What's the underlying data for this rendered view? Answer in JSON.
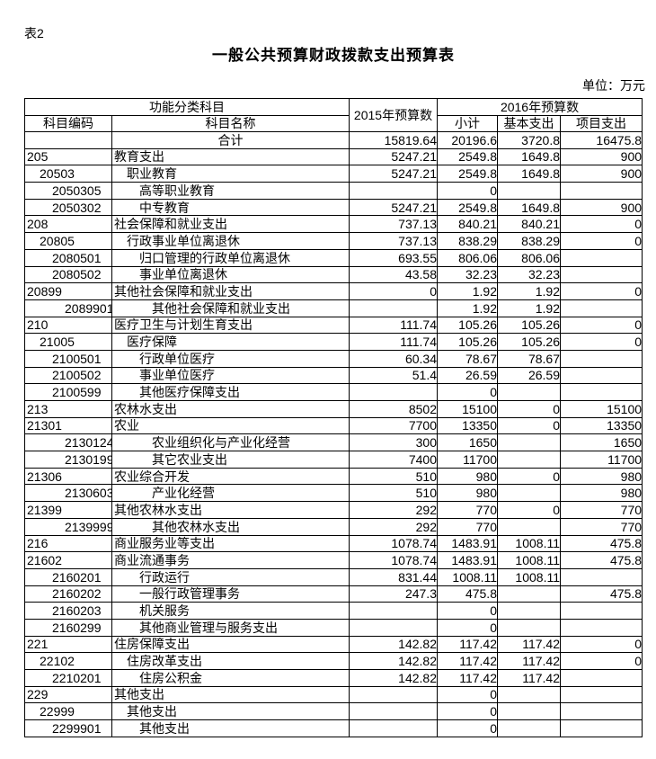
{
  "page": {
    "table_label": "表2",
    "title": "一般公共预算财政拨款支出预算表",
    "unit_note": "单位：万元"
  },
  "colors": {
    "text": "#000000",
    "background": "#ffffff",
    "border": "#000000"
  },
  "table": {
    "header": {
      "group_function": "功能分类科目",
      "col_code": "科目编码",
      "col_name": "科目名称",
      "col_2015": "2015年预算数",
      "group_2016": "2016年预算数",
      "col_subtotal": "小计",
      "col_basic": "基本支出",
      "col_project": "项目支出"
    },
    "rows": [
      {
        "code": "",
        "name": "合计",
        "name_align": "center",
        "indent": 0,
        "y2015": "15819.64",
        "subtotal": "20196.6",
        "basic": "3720.8",
        "project": "16475.8"
      },
      {
        "code": "205",
        "name": "教育支出",
        "indent": 0,
        "y2015": "5247.21",
        "subtotal": "2549.8",
        "basic": "1649.8",
        "project": "900"
      },
      {
        "code": "20503",
        "name": "职业教育",
        "indent": 2,
        "y2015": "5247.21",
        "subtotal": "2549.8",
        "basic": "1649.8",
        "project": "900"
      },
      {
        "code": "2050305",
        "name": "高等职业教育",
        "indent": 4,
        "y2015": "",
        "subtotal": "0",
        "basic": "",
        "project": ""
      },
      {
        "code": "2050302",
        "name": "中专教育",
        "indent": 4,
        "y2015": "5247.21",
        "subtotal": "2549.8",
        "basic": "1649.8",
        "project": "900"
      },
      {
        "code": "208",
        "name": "社会保障和就业支出",
        "indent": 0,
        "y2015": "737.13",
        "subtotal": "840.21",
        "basic": "840.21",
        "project": "0"
      },
      {
        "code": "20805",
        "name": "行政事业单位离退休",
        "indent": 2,
        "y2015": "737.13",
        "subtotal": "838.29",
        "basic": "838.29",
        "project": "0"
      },
      {
        "code": "2080501",
        "name": "归口管理的行政单位离退休",
        "indent": 4,
        "y2015": "693.55",
        "subtotal": "806.06",
        "basic": "806.06",
        "project": ""
      },
      {
        "code": "2080502",
        "name": "事业单位离退休",
        "indent": 4,
        "y2015": "43.58",
        "subtotal": "32.23",
        "basic": "32.23",
        "project": ""
      },
      {
        "code": "20899",
        "name": "其他社会保障和就业支出",
        "indent": 0,
        "y2015": "0",
        "subtotal": "1.92",
        "basic": "1.92",
        "project": "0"
      },
      {
        "code": "2089901",
        "name": "其他社会保障和就业支出",
        "indent": 6,
        "y2015": "",
        "subtotal": "1.92",
        "basic": "1.92",
        "project": ""
      },
      {
        "code": "210",
        "name": "医疗卫生与计划生育支出",
        "indent": 0,
        "y2015": "111.74",
        "subtotal": "105.26",
        "basic": "105.26",
        "project": "0"
      },
      {
        "code": "21005",
        "name": "医疗保障",
        "indent": 2,
        "y2015": "111.74",
        "subtotal": "105.26",
        "basic": "105.26",
        "project": "0"
      },
      {
        "code": "2100501",
        "name": "行政单位医疗",
        "indent": 4,
        "y2015": "60.34",
        "subtotal": "78.67",
        "basic": "78.67",
        "project": ""
      },
      {
        "code": "2100502",
        "name": "事业单位医疗",
        "indent": 4,
        "y2015": "51.4",
        "subtotal": "26.59",
        "basic": "26.59",
        "project": ""
      },
      {
        "code": "2100599",
        "name": "其他医疗保障支出",
        "indent": 4,
        "y2015": "",
        "subtotal": "0",
        "basic": "",
        "project": ""
      },
      {
        "code": "213",
        "name": "农林水支出",
        "indent": 0,
        "y2015": "8502",
        "subtotal": "15100",
        "basic": "0",
        "project": "15100"
      },
      {
        "code": "21301",
        "name": "农业",
        "indent": 0,
        "y2015": "7700",
        "subtotal": "13350",
        "basic": "0",
        "project": "13350"
      },
      {
        "code": "2130124",
        "name": "农业组织化与产业化经营",
        "indent": 6,
        "y2015": "300",
        "subtotal": "1650",
        "basic": "",
        "project": "1650"
      },
      {
        "code": "2130199",
        "name": "其它农业支出",
        "indent": 6,
        "y2015": "7400",
        "subtotal": "11700",
        "basic": "",
        "project": "11700"
      },
      {
        "code": "21306",
        "name": "农业综合开发",
        "indent": 0,
        "y2015": "510",
        "subtotal": "980",
        "basic": "0",
        "project": "980"
      },
      {
        "code": "2130603",
        "name": "产业化经营",
        "indent": 6,
        "y2015": "510",
        "subtotal": "980",
        "basic": "",
        "project": "980"
      },
      {
        "code": "21399",
        "name": "其他农林水支出",
        "indent": 0,
        "y2015": "292",
        "subtotal": "770",
        "basic": "0",
        "project": "770"
      },
      {
        "code": "2139999",
        "name": "其他农林水支出",
        "indent": 6,
        "y2015": "292",
        "subtotal": "770",
        "basic": "",
        "project": "770"
      },
      {
        "code": "216",
        "name": "商业服务业等支出",
        "indent": 0,
        "y2015": "1078.74",
        "subtotal": "1483.91",
        "basic": "1008.11",
        "project": "475.8"
      },
      {
        "code": "21602",
        "name": "商业流通事务",
        "indent": 0,
        "y2015": "1078.74",
        "subtotal": "1483.91",
        "basic": "1008.11",
        "project": "475.8"
      },
      {
        "code": "2160201",
        "name": "行政运行",
        "indent": 4,
        "y2015": "831.44",
        "subtotal": "1008.11",
        "basic": "1008.11",
        "project": ""
      },
      {
        "code": "2160202",
        "name": "一般行政管理事务",
        "indent": 4,
        "y2015": "247.3",
        "subtotal": "475.8",
        "basic": "",
        "project": "475.8"
      },
      {
        "code": "2160203",
        "name": "机关服务",
        "indent": 4,
        "y2015": "",
        "subtotal": "0",
        "basic": "",
        "project": ""
      },
      {
        "code": "2160299",
        "name": "其他商业管理与服务支出",
        "indent": 4,
        "y2015": "",
        "subtotal": "0",
        "basic": "",
        "project": ""
      },
      {
        "code": "221",
        "name": "住房保障支出",
        "indent": 0,
        "y2015": "142.82",
        "subtotal": "117.42",
        "basic": "117.42",
        "project": "0"
      },
      {
        "code": "22102",
        "name": "住房改革支出",
        "indent": 2,
        "y2015": "142.82",
        "subtotal": "117.42",
        "basic": "117.42",
        "project": "0"
      },
      {
        "code": "2210201",
        "name": "住房公积金",
        "indent": 4,
        "y2015": "142.82",
        "subtotal": "117.42",
        "basic": "117.42",
        "project": ""
      },
      {
        "code": "229",
        "name": "其他支出",
        "indent": 0,
        "y2015": "",
        "subtotal": "0",
        "basic": "",
        "project": ""
      },
      {
        "code": "22999",
        "name": "其他支出",
        "indent": 2,
        "y2015": "",
        "subtotal": "0",
        "basic": "",
        "project": ""
      },
      {
        "code": "2299901",
        "name": "其他支出",
        "indent": 4,
        "y2015": "",
        "subtotal": "0",
        "basic": "",
        "project": ""
      }
    ]
  }
}
